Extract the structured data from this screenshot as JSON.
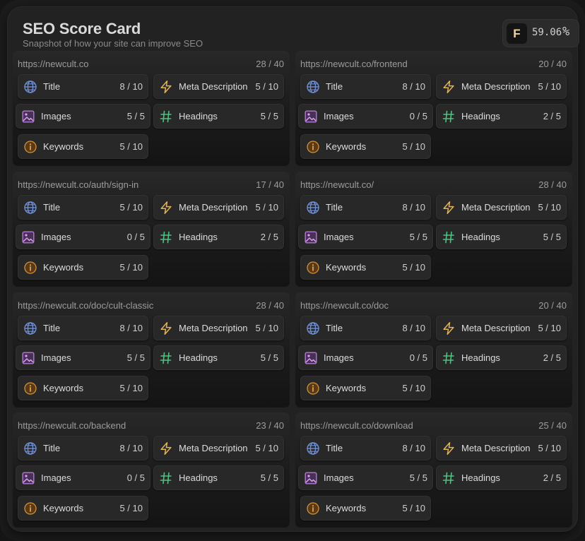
{
  "header": {
    "title": "SEO Score Card",
    "subtitle": "Snapshot of how your site can improve SEO",
    "grade": "F",
    "overall_score": "59.06",
    "percent_sign": "%"
  },
  "colors": {
    "title_icon": "#6f8fd8",
    "meta_icon": "#e2b35a",
    "images_icon": "#b27ad0",
    "headings_icon": "#4ec27e",
    "keywords_icon": "#d4913a"
  },
  "metric_labels": {
    "title": "Title",
    "meta": "Meta Description",
    "images": "Images",
    "headings": "Headings",
    "keywords": "Keywords"
  },
  "icons": {
    "title": "globe-icon",
    "meta": "lightning-icon",
    "images": "image-icon",
    "headings": "hash-icon",
    "keywords": "info-icon"
  },
  "pages": [
    {
      "url": "https://newcult.co",
      "score": "28 / 40",
      "title": "8 / 10",
      "meta": "5 / 10",
      "images": "5 / 5",
      "headings": "5 / 5",
      "keywords": "5 / 10"
    },
    {
      "url": "https://newcult.co/frontend",
      "score": "20 / 40",
      "title": "8 / 10",
      "meta": "5 / 10",
      "images": "0 / 5",
      "headings": "2 / 5",
      "keywords": "5 / 10"
    },
    {
      "url": "https://newcult.co/auth/sign-in",
      "score": "17 / 40",
      "title": "5 / 10",
      "meta": "5 / 10",
      "images": "0 / 5",
      "headings": "2 / 5",
      "keywords": "5 / 10"
    },
    {
      "url": "https://newcult.co/",
      "score": "28 / 40",
      "title": "8 / 10",
      "meta": "5 / 10",
      "images": "5 / 5",
      "headings": "5 / 5",
      "keywords": "5 / 10"
    },
    {
      "url": "https://newcult.co/doc/cult-classic",
      "score": "28 / 40",
      "title": "8 / 10",
      "meta": "5 / 10",
      "images": "5 / 5",
      "headings": "5 / 5",
      "keywords": "5 / 10"
    },
    {
      "url": "https://newcult.co/doc",
      "score": "20 / 40",
      "title": "8 / 10",
      "meta": "5 / 10",
      "images": "0 / 5",
      "headings": "2 / 5",
      "keywords": "5 / 10"
    },
    {
      "url": "https://newcult.co/backend",
      "score": "23 / 40",
      "title": "8 / 10",
      "meta": "5 / 10",
      "images": "0 / 5",
      "headings": "5 / 5",
      "keywords": "5 / 10"
    },
    {
      "url": "https://newcult.co/download",
      "score": "25 / 40",
      "title": "8 / 10",
      "meta": "5 / 10",
      "images": "5 / 5",
      "headings": "2 / 5",
      "keywords": "5 / 10"
    }
  ]
}
